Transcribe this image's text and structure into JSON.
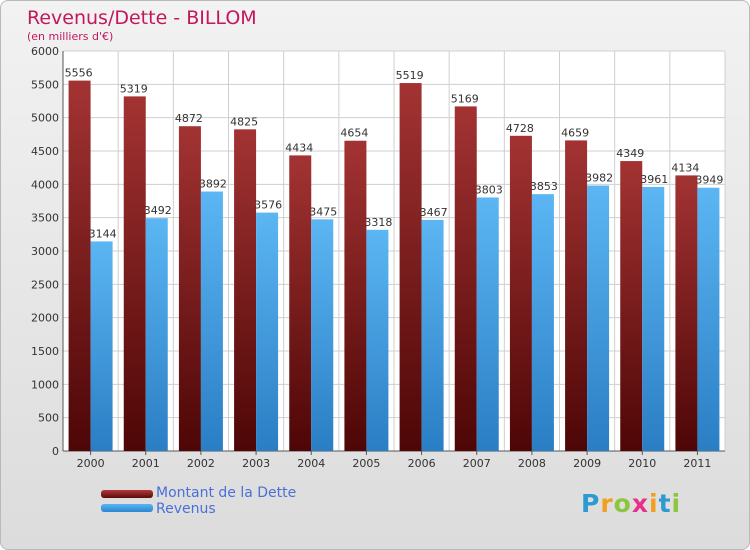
{
  "header": {
    "title": "Revenus/Dette - BILLOM",
    "subtitle": "(en milliers d'€)"
  },
  "legend": {
    "debt_label": "Montant de la Dette",
    "revenue_label": "Revenus"
  },
  "logo": {
    "text": "Proxiti",
    "letters": [
      {
        "ch": "P",
        "color": "#2e9ad0"
      },
      {
        "ch": "r",
        "color": "#f0a020"
      },
      {
        "ch": "o",
        "color": "#8cc63f"
      },
      {
        "ch": "x",
        "color": "#e8308a"
      },
      {
        "ch": "i",
        "color": "#f0a020"
      },
      {
        "ch": "t",
        "color": "#2e9ad0"
      },
      {
        "ch": "i",
        "color": "#8cc63f"
      }
    ]
  },
  "colors": {
    "debt_top": "#a33333",
    "debt_bottom": "#4e0606",
    "revenue_top": "#5cb6f3",
    "revenue_bottom": "#2a7ec4",
    "title": "#c2185b",
    "legend_text": "#4a6fd8"
  },
  "chart_data": {
    "type": "bar",
    "title": "Revenus/Dette - BILLOM",
    "subtitle": "(en milliers d'€)",
    "categories": [
      "2000",
      "2001",
      "2002",
      "2003",
      "2004",
      "2005",
      "2006",
      "2007",
      "2008",
      "2009",
      "2010",
      "2011"
    ],
    "series": [
      {
        "name": "Montant de la Dette",
        "values": [
          5556,
          5319,
          4872,
          4825,
          4434,
          4654,
          5519,
          5169,
          4728,
          4659,
          4349,
          4134
        ]
      },
      {
        "name": "Revenus",
        "values": [
          3144,
          3492,
          3892,
          3576,
          3475,
          3318,
          3467,
          3803,
          3853,
          3982,
          3961,
          3949
        ]
      }
    ],
    "ylim": [
      0,
      6000
    ],
    "yticks": [
      0,
      500,
      1000,
      1500,
      2000,
      2500,
      3000,
      3500,
      4000,
      4500,
      5000,
      5500,
      6000
    ],
    "grid": true,
    "legend_position": "bottom-left"
  }
}
